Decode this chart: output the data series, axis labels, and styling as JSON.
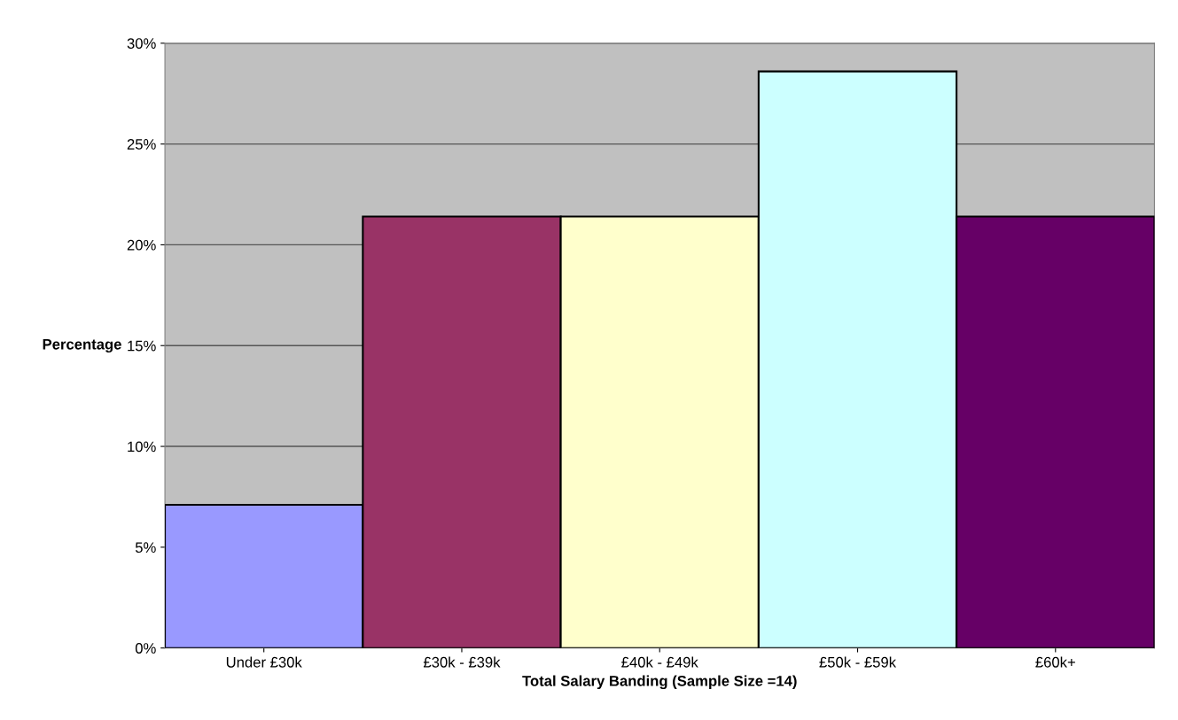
{
  "chart_data": {
    "type": "bar",
    "xlabel": "Total Salary Banding (Sample Size =14)",
    "ylabel": "Percentage",
    "categories": [
      "Under £30k",
      "£30k - £39k",
      "£40k - £49k",
      "£50k - £59k",
      "£60k+"
    ],
    "values": [
      7.1,
      21.4,
      21.4,
      28.6,
      21.4
    ],
    "colors": [
      "#9999ff",
      "#993366",
      "#ffffcc",
      "#ccffff",
      "#660066"
    ],
    "ylim": [
      0,
      30
    ],
    "yticks": [
      {
        "value": 0,
        "label": "0%"
      },
      {
        "value": 5,
        "label": "5%"
      },
      {
        "value": 10,
        "label": "10%"
      },
      {
        "value": 15,
        "label": "15%"
      },
      {
        "value": 20,
        "label": "20%"
      },
      {
        "value": 25,
        "label": "25%"
      },
      {
        "value": 30,
        "label": "30%"
      }
    ],
    "grid": "y"
  }
}
